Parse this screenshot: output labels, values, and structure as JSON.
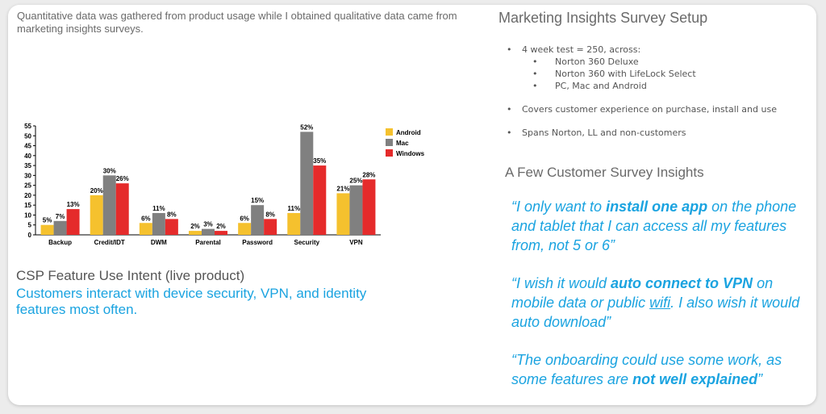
{
  "intro_text": "Quantitative data was gathered from product usage while I obtained qualitative data came from marketing insights surveys.",
  "chart_title": "CSP Feature Use Intent (live product)",
  "chart_caption": "Customers interact with device security, VPN, and identity features most often.",
  "survey": {
    "title": "Marketing Insights Survey Setup",
    "b1": "4 week test = 250, across:",
    "b1_sub": [
      "Norton 360 Deluxe",
      "Norton 360 with LifeLock Select",
      "PC, Mac and Android"
    ],
    "b2": "Covers customer experience on purchase, install and use",
    "b3": "Spans Norton, LL and non-customers"
  },
  "insights": {
    "title": "A Few Customer Survey Insights",
    "q1": {
      "a": "“I only want to ",
      "b": "install one app",
      "c": " on the phone and tablet that I can access all my features from, not 5 or 6”"
    },
    "q2": {
      "a": "“I wish it would ",
      "b": "auto connect to VPN",
      "c": " on mobile data or public ",
      "d": "wifi",
      "e": ".  I also wish it would auto download”"
    },
    "q3": {
      "a": "“The onboarding could use some work, as some features are ",
      "b": "not well explained",
      "c": "”"
    }
  },
  "chart_data": {
    "type": "bar",
    "categories": [
      "Backup",
      "Credit/IDT",
      "DWM",
      "Parental",
      "Password",
      "Security",
      "VPN"
    ],
    "series": [
      {
        "name": "Android",
        "color": "#f5c12e",
        "values": [
          5,
          20,
          6,
          2,
          6,
          11,
          21
        ]
      },
      {
        "name": "Mac",
        "color": "#808080",
        "values": [
          7,
          30,
          11,
          3,
          15,
          52,
          25
        ]
      },
      {
        "name": "Windows",
        "color": "#e52b2b",
        "values": [
          13,
          26,
          8,
          2,
          8,
          35,
          28
        ]
      }
    ],
    "ylim": [
      0,
      55
    ],
    "yticks": [
      0,
      5,
      10,
      15,
      20,
      25,
      30,
      35,
      40,
      45,
      50,
      55
    ],
    "value_suffix": "%",
    "legend_position": "right",
    "grid": false
  }
}
